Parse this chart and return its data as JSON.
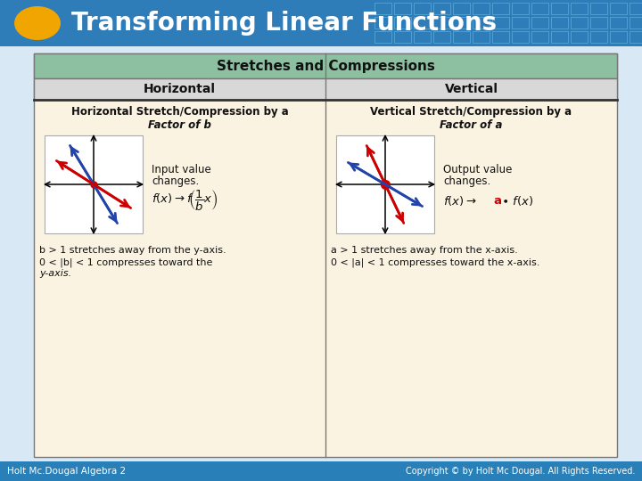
{
  "title": "Transforming Linear Functions",
  "title_bg_color": "#2E7CB8",
  "title_text_color": "#FFFFFF",
  "oval_color": "#F0A500",
  "footer_text_left": "Holt Mc.Dougal Algebra 2",
  "footer_text_right": "Copyright © by Holt Mc Dougal. All Rights Reserved.",
  "footer_bg": "#2980B9",
  "table_header_bg": "#8DC0A0",
  "table_subheader_bg": "#D8D8D8",
  "table_body_bg": "#FBF3E2",
  "table_border_color": "#777777",
  "table_title": "Stretches and Compressions",
  "col1_header": "Horizontal",
  "col2_header": "Vertical",
  "col1_subtitle1": "Horizontal Stretch/Compression by a",
  "col1_subtitle2": "Factor of b",
  "col2_subtitle1": "Vertical Stretch/Compression by a",
  "col2_subtitle2": "Factor of a",
  "col1_note1": "Input value",
  "col1_note2": "changes.",
  "col2_note1": "Output value",
  "col2_note2": "changes.",
  "col1_desc1": "b > 1 stretches away from the y-axis.",
  "col1_desc2": "0 < |b| < 1 compresses toward the",
  "col1_desc3": "y-axis.",
  "col2_desc1": "a > 1 stretches away from the x-axis.",
  "col2_desc2": "0 < |a| < 1 compresses toward the x-axis.",
  "red_color": "#CC0000",
  "blue_color": "#2244AA",
  "slide_bg": "#D8E8F4"
}
